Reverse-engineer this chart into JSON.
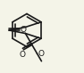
{
  "bg_color": "#f4f4e8",
  "line_color": "#1a1a1a",
  "line_width": 1.2,
  "font_size": 6.5,
  "figsize": [
    0.94,
    0.82
  ],
  "dpi": 100,
  "xlim": [
    0,
    9.4
  ],
  "ylim": [
    0,
    8.2
  ]
}
